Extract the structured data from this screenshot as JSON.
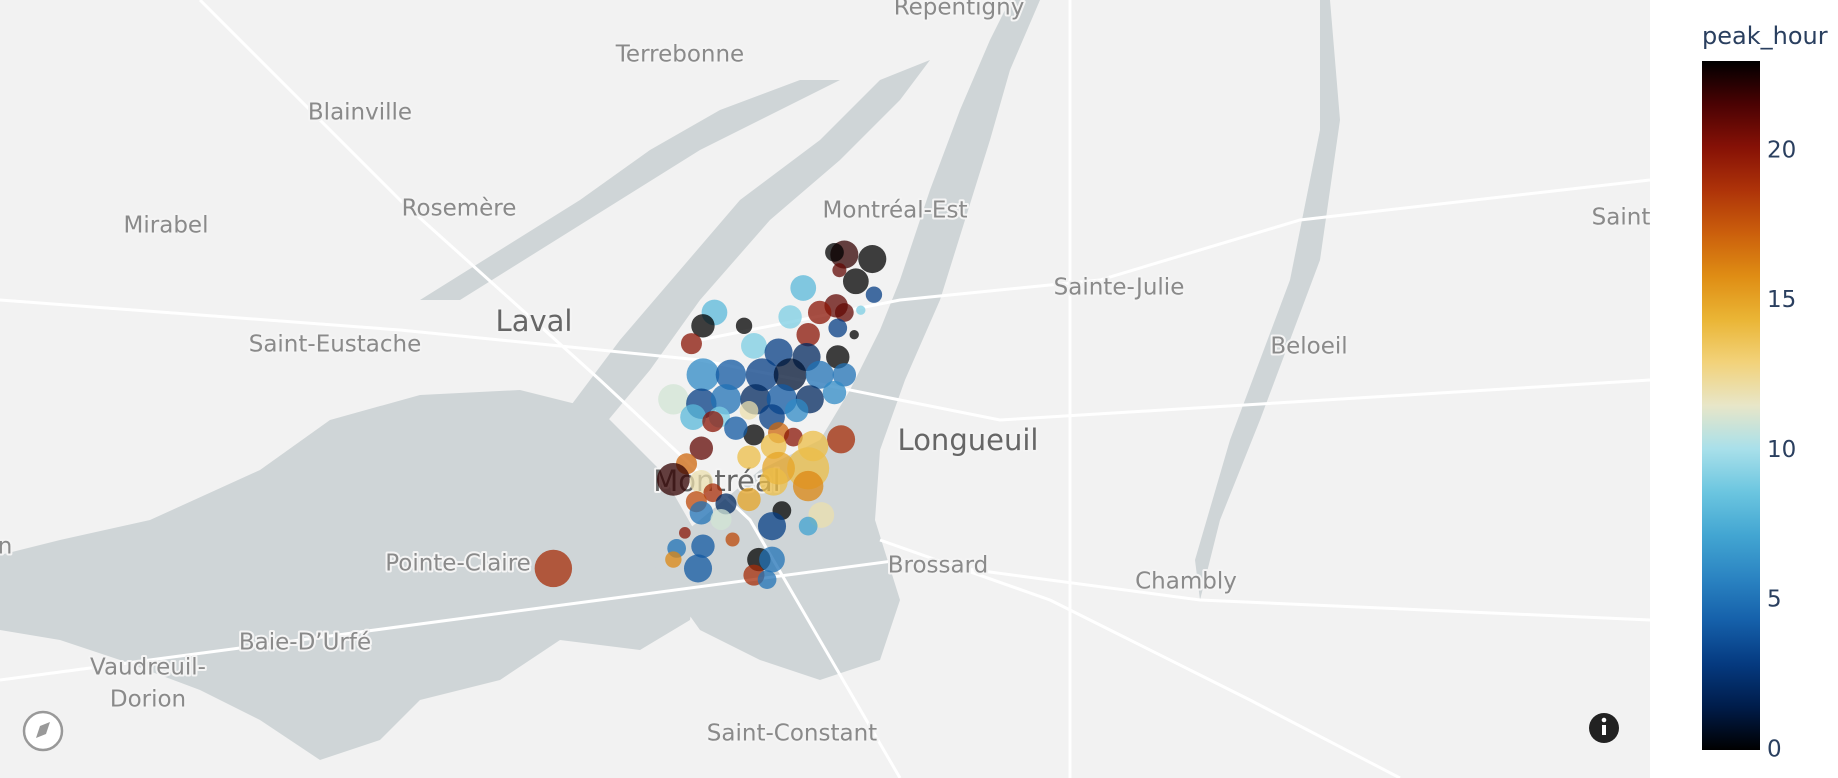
{
  "chart_data": {
    "type": "scatter_map",
    "colorbar_title": "peak_hour",
    "clim": [
      0,
      23
    ],
    "cticks": [
      0,
      5,
      10,
      15,
      20
    ],
    "colorscale": [
      "#000000",
      "#001c4a",
      "#053a80",
      "#1560aa",
      "#2b84c2",
      "#43a6d2",
      "#6cc6e0",
      "#a9e0ea",
      "#e8e6c8",
      "#f2d27a",
      "#eab535",
      "#df8d14",
      "#cb5f0c",
      "#ae3309",
      "#861106",
      "#4a0203",
      "#000000"
    ],
    "opacity": 0.75,
    "lon": [
      -73.752,
      -73.575,
      -73.558,
      -73.581,
      -73.568,
      -73.578,
      -73.557,
      -73.6,
      -73.58,
      -73.59,
      -73.575,
      -73.565,
      -73.654,
      -73.661,
      -73.668,
      -73.636,
      -73.608,
      -73.597,
      -73.579,
      -73.569,
      -73.63,
      -73.615,
      -73.598,
      -73.579,
      -73.661,
      -73.644,
      -73.625,
      -73.608,
      -73.59,
      -73.575,
      -73.679,
      -73.662,
      -73.647,
      -73.629,
      -73.613,
      -73.596,
      -73.581,
      -73.667,
      -73.651,
      -73.633,
      -73.619,
      -73.604,
      -73.655,
      -73.63,
      -73.641,
      -73.615,
      -73.606,
      -73.577,
      -73.594,
      -73.618,
      -73.662,
      -73.671,
      -73.597,
      -73.615,
      -73.633,
      -73.679,
      -73.662,
      -73.597,
      -73.618,
      -73.655,
      -73.665,
      -73.647,
      -73.633,
      -73.613,
      -73.589,
      -73.662,
      -73.65,
      -73.619,
      -73.597,
      -73.677,
      -73.661,
      -73.643,
      -73.627,
      -73.619,
      -73.664,
      -73.63,
      -73.622,
      -73.679,
      -73.672
    ],
    "lat": [
      45.448,
      45.589,
      45.587,
      45.59,
      45.577,
      45.582,
      45.571,
      45.574,
      45.566,
      45.563,
      45.563,
      45.564,
      45.563,
      45.557,
      45.549,
      45.557,
      45.561,
      45.553,
      45.556,
      45.553,
      45.548,
      45.545,
      45.543,
      45.543,
      45.535,
      45.535,
      45.535,
      45.535,
      45.535,
      45.535,
      45.524,
      45.522,
      45.524,
      45.524,
      45.524,
      45.524,
      45.527,
      45.516,
      45.516,
      45.519,
      45.516,
      45.519,
      45.514,
      45.508,
      45.511,
      45.509,
      45.507,
      45.506,
      45.503,
      45.503,
      45.502,
      45.495,
      45.493,
      45.493,
      45.498,
      45.488,
      45.487,
      45.485,
      45.487,
      45.482,
      45.478,
      45.477,
      45.479,
      45.474,
      45.472,
      45.473,
      45.47,
      45.467,
      45.467,
      45.457,
      45.458,
      45.461,
      45.452,
      45.452,
      45.448,
      45.445,
      45.443,
      45.452,
      45.464
    ],
    "peak_hour": [
      19,
      22,
      23,
      23,
      23,
      21,
      3,
      8,
      21,
      20,
      21,
      9,
      8,
      23,
      20,
      23,
      9,
      20,
      3,
      23,
      9,
      3,
      2,
      23,
      6,
      4,
      3,
      1,
      5,
      5,
      11,
      3,
      5,
      2,
      4,
      2,
      6,
      8,
      9,
      12,
      3,
      6,
      20,
      23,
      4,
      17,
      20,
      19,
      14,
      14,
      21,
      17,
      14,
      15,
      14,
      22,
      12,
      16,
      14,
      19,
      18,
      2,
      15,
      23,
      12,
      5,
      11,
      3,
      7,
      5,
      4,
      18,
      23,
      5,
      4,
      19,
      5,
      16,
      20
    ],
    "size": [
      16,
      12,
      12,
      8,
      11,
      6,
      7,
      11,
      10,
      10,
      8,
      4,
      11,
      10,
      9,
      7,
      10,
      10,
      8,
      4,
      11,
      12,
      12,
      10,
      14,
      13,
      14,
      14,
      12,
      10,
      13,
      13,
      13,
      13,
      13,
      12,
      10,
      11,
      9,
      8,
      11,
      10,
      9,
      9,
      10,
      9,
      8,
      12,
      13,
      11,
      10,
      9,
      18,
      14,
      10,
      14,
      10,
      13,
      12,
      8,
      9,
      9,
      10,
      8,
      11,
      10,
      9,
      12,
      8,
      8,
      10,
      6,
      10,
      11,
      12,
      9,
      8,
      7,
      5
    ]
  },
  "map_labels": [
    "Repentigny",
    "Terrebonne",
    "Blainville",
    "Mirabel",
    "Rosemère",
    "Montréal-Est",
    "Laval",
    "Saint-Eustache",
    "Sainte-Julie",
    "Beloeil",
    "Saint",
    "Longueuil",
    "Montréal",
    "Pointe-Claire",
    "Brossard",
    "Chambly",
    "Baie-D’Urfé",
    "Vaudreuil-",
    "Dorion",
    "Saint-Constant",
    "n"
  ]
}
